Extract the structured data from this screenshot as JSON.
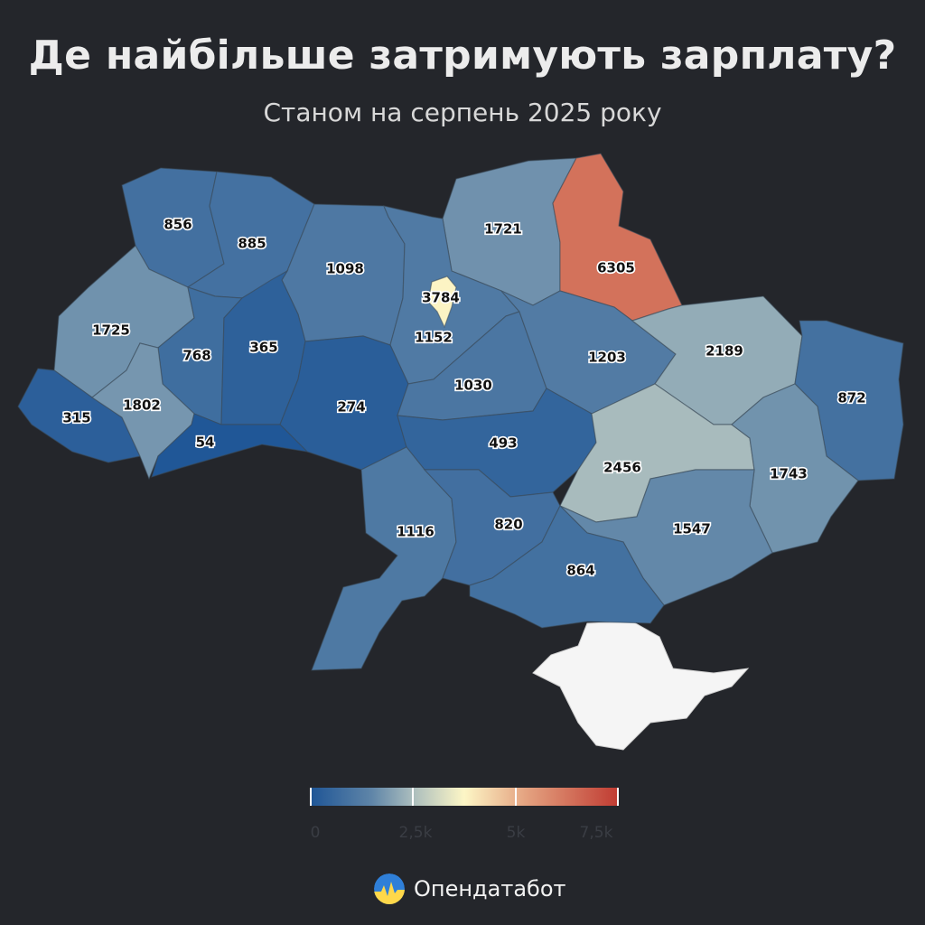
{
  "title": "Де найбільше затримують зарплату?",
  "subtitle": "Станом на серпень 2025 року",
  "brand": "Опендатабот",
  "colors": {
    "background": "#24262b",
    "scale_low": "#1e5596",
    "scale_mid": "#fdf6c6",
    "scale_high": "#c03b32",
    "crimea": "#f5f5f5"
  },
  "legend": {
    "min": 0,
    "max": 7500,
    "ticks": [
      "0",
      "2,5k",
      "5k",
      "7,5k"
    ]
  },
  "regions": [
    {
      "id": "volyn",
      "value": "856"
    },
    {
      "id": "rivne",
      "value": "885"
    },
    {
      "id": "zhytomyr",
      "value": "1098"
    },
    {
      "id": "kyiv-city",
      "value": "3784"
    },
    {
      "id": "kyiv-oblast",
      "value": "1152"
    },
    {
      "id": "chernihiv",
      "value": "1721"
    },
    {
      "id": "sumy",
      "value": "6305"
    },
    {
      "id": "lviv",
      "value": "1725"
    },
    {
      "id": "ternopil",
      "value": "768"
    },
    {
      "id": "khmelnytskyi",
      "value": "365"
    },
    {
      "id": "vinnytsia",
      "value": "274"
    },
    {
      "id": "cherkasy",
      "value": "1030"
    },
    {
      "id": "poltava",
      "value": "1203"
    },
    {
      "id": "kharkiv",
      "value": "2189"
    },
    {
      "id": "luhansk",
      "value": "872"
    },
    {
      "id": "zakarpattia",
      "value": "315"
    },
    {
      "id": "ivano-frankivsk",
      "value": "1802"
    },
    {
      "id": "chernivtsi",
      "value": "54"
    },
    {
      "id": "kirovohrad",
      "value": "493"
    },
    {
      "id": "dnipropetrovsk",
      "value": "2456"
    },
    {
      "id": "donetsk",
      "value": "1743"
    },
    {
      "id": "odesa",
      "value": "1116"
    },
    {
      "id": "mykolaiv",
      "value": "820"
    },
    {
      "id": "zaporizhzhia",
      "value": "1547"
    },
    {
      "id": "kherson",
      "value": "864"
    }
  ]
}
